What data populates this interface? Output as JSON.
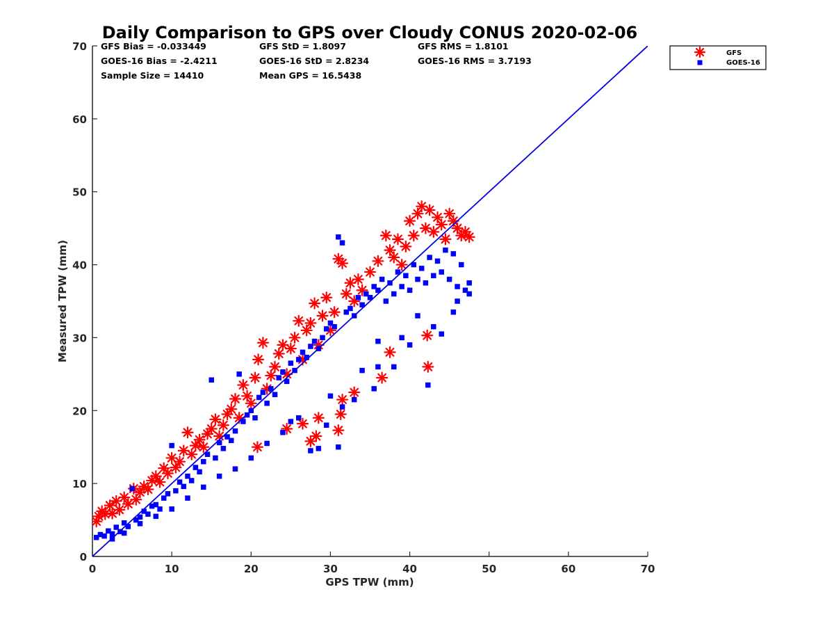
{
  "chart_data": {
    "type": "scatter",
    "title": "Daily Comparison to GPS over Cloudy CONUS 2020-02-06",
    "xlabel": "GPS TPW (mm)",
    "ylabel": "Measured TPW (mm)",
    "xlim": [
      0,
      70
    ],
    "ylim": [
      0,
      70
    ],
    "xticks": [
      0,
      10,
      20,
      30,
      40,
      50,
      60,
      70
    ],
    "yticks": [
      0,
      10,
      20,
      30,
      40,
      50,
      60,
      70
    ],
    "grid": false,
    "legend_position": "outside-top-right",
    "reference_line": {
      "name": "1:1 line",
      "x": [
        0,
        70
      ],
      "y": [
        0,
        70
      ],
      "color": "#0000e6"
    },
    "stats": [
      [
        "GFS Bias = -0.033449",
        "GFS StD = 1.8097",
        "GFS RMS = 1.8101"
      ],
      [
        "GOES-16 Bias = -2.4211",
        "GOES-16 StD = 2.8234",
        "GOES-16 RMS = 3.7193"
      ],
      [
        "Sample Size = 14410",
        "Mean GPS = 16.5438"
      ]
    ],
    "series": [
      {
        "name": "GFS",
        "marker": "asterisk",
        "color": "#ff0000",
        "points": [
          [
            0.5,
            4.8
          ],
          [
            0.8,
            5.5
          ],
          [
            1.2,
            6.2
          ],
          [
            1.6,
            5.8
          ],
          [
            2.2,
            7.0
          ],
          [
            2.5,
            5.9
          ],
          [
            3.0,
            7.6
          ],
          [
            3.4,
            6.4
          ],
          [
            4.0,
            8.1
          ],
          [
            4.5,
            7.2
          ],
          [
            5.2,
            9.3
          ],
          [
            5.5,
            7.8
          ],
          [
            6.0,
            8.8
          ],
          [
            6.5,
            9.6
          ],
          [
            7.0,
            9.2
          ],
          [
            7.5,
            10.4
          ],
          [
            8.0,
            11.0
          ],
          [
            8.5,
            10.2
          ],
          [
            9.0,
            12.1
          ],
          [
            9.5,
            11.4
          ],
          [
            10.0,
            13.5
          ],
          [
            10.5,
            12.2
          ],
          [
            11.0,
            13.0
          ],
          [
            11.5,
            14.5
          ],
          [
            12.0,
            17.0
          ],
          [
            12.5,
            14.0
          ],
          [
            13.0,
            15.2
          ],
          [
            13.5,
            16.0
          ],
          [
            14.0,
            15.0
          ],
          [
            14.5,
            16.8
          ],
          [
            15.0,
            17.5
          ],
          [
            15.5,
            18.8
          ],
          [
            16.0,
            16.5
          ],
          [
            16.5,
            18.0
          ],
          [
            17.0,
            19.5
          ],
          [
            17.5,
            20.2
          ],
          [
            18.0,
            21.6
          ],
          [
            18.5,
            19.0
          ],
          [
            19.0,
            23.5
          ],
          [
            19.5,
            22.0
          ],
          [
            20.0,
            21.0
          ],
          [
            20.5,
            24.5
          ],
          [
            20.9,
            27.0
          ],
          [
            21.5,
            29.3
          ],
          [
            22.0,
            23.0
          ],
          [
            22.5,
            24.8
          ],
          [
            23.0,
            26.0
          ],
          [
            23.5,
            27.8
          ],
          [
            24.0,
            29.0
          ],
          [
            24.5,
            25.0
          ],
          [
            25.0,
            28.5
          ],
          [
            25.5,
            30.0
          ],
          [
            26.0,
            32.3
          ],
          [
            26.5,
            27.0
          ],
          [
            27.0,
            31.0
          ],
          [
            27.5,
            32.0
          ],
          [
            28.0,
            34.7
          ],
          [
            28.5,
            29.0
          ],
          [
            29.0,
            33.0
          ],
          [
            29.5,
            35.5
          ],
          [
            30.0,
            31.0
          ],
          [
            30.5,
            33.5
          ],
          [
            31.0,
            40.8
          ],
          [
            31.5,
            40.2
          ],
          [
            32.0,
            36.0
          ],
          [
            32.5,
            37.5
          ],
          [
            33.0,
            35.0
          ],
          [
            33.5,
            38.0
          ],
          [
            34.0,
            36.5
          ],
          [
            35.0,
            39.0
          ],
          [
            36.0,
            40.5
          ],
          [
            37.0,
            44.0
          ],
          [
            37.5,
            42.0
          ],
          [
            38.0,
            41.0
          ],
          [
            38.5,
            43.5
          ],
          [
            39.0,
            40.0
          ],
          [
            39.5,
            42.5
          ],
          [
            40.0,
            46.0
          ],
          [
            40.5,
            44.0
          ],
          [
            41.0,
            47.0
          ],
          [
            41.5,
            48.0
          ],
          [
            42.0,
            45.0
          ],
          [
            42.5,
            47.5
          ],
          [
            43.0,
            44.5
          ],
          [
            43.5,
            46.5
          ],
          [
            44.0,
            45.5
          ],
          [
            44.5,
            43.5
          ],
          [
            45.0,
            47.0
          ],
          [
            45.5,
            46.0
          ],
          [
            46.0,
            45.0
          ],
          [
            46.5,
            44.0
          ],
          [
            47.0,
            44.5
          ],
          [
            47.5,
            43.8
          ],
          [
            42.3,
            26.0
          ],
          [
            42.2,
            30.3
          ],
          [
            31.5,
            21.5
          ],
          [
            31.3,
            19.5
          ],
          [
            31.0,
            17.3
          ],
          [
            27.5,
            15.8
          ],
          [
            28.2,
            16.5
          ],
          [
            28.5,
            19.0
          ],
          [
            26.5,
            18.2
          ],
          [
            37.5,
            28.0
          ],
          [
            36.5,
            24.5
          ],
          [
            33.0,
            22.5
          ],
          [
            20.8,
            15.0
          ],
          [
            24.5,
            17.5
          ]
        ]
      },
      {
        "name": "GOES-16",
        "marker": "square",
        "color": "#0000ff",
        "points": [
          [
            0.5,
            2.6
          ],
          [
            1.0,
            3.0
          ],
          [
            1.5,
            2.8
          ],
          [
            2.0,
            3.5
          ],
          [
            2.5,
            3.1
          ],
          [
            3.0,
            4.0
          ],
          [
            3.5,
            3.4
          ],
          [
            4.0,
            4.6
          ],
          [
            4.5,
            4.1
          ],
          [
            5.0,
            9.3
          ],
          [
            5.5,
            5.0
          ],
          [
            6.0,
            5.4
          ],
          [
            6.5,
            6.2
          ],
          [
            7.0,
            5.8
          ],
          [
            7.5,
            6.9
          ],
          [
            8.0,
            7.1
          ],
          [
            8.5,
            6.5
          ],
          [
            9.0,
            8.0
          ],
          [
            9.5,
            8.6
          ],
          [
            10.0,
            15.2
          ],
          [
            10.5,
            9.0
          ],
          [
            11.0,
            10.2
          ],
          [
            11.5,
            9.6
          ],
          [
            12.0,
            11.0
          ],
          [
            12.5,
            10.4
          ],
          [
            13.0,
            12.2
          ],
          [
            13.5,
            11.6
          ],
          [
            14.0,
            13.0
          ],
          [
            14.5,
            14.0
          ],
          [
            15.0,
            24.2
          ],
          [
            15.5,
            13.5
          ],
          [
            16.0,
            15.6
          ],
          [
            16.5,
            14.8
          ],
          [
            17.0,
            16.4
          ],
          [
            17.5,
            15.9
          ],
          [
            18.0,
            17.2
          ],
          [
            18.5,
            25.0
          ],
          [
            19.0,
            18.5
          ],
          [
            19.5,
            19.4
          ],
          [
            20.0,
            20.0
          ],
          [
            20.5,
            19.0
          ],
          [
            21.0,
            21.8
          ],
          [
            21.5,
            22.5
          ],
          [
            22.0,
            21.0
          ],
          [
            22.5,
            23.0
          ],
          [
            23.0,
            22.2
          ],
          [
            23.5,
            24.5
          ],
          [
            24.0,
            25.3
          ],
          [
            24.5,
            24.0
          ],
          [
            25.0,
            26.5
          ],
          [
            25.5,
            25.5
          ],
          [
            26.0,
            27.0
          ],
          [
            26.5,
            28.0
          ],
          [
            27.0,
            27.3
          ],
          [
            27.5,
            28.8
          ],
          [
            28.0,
            29.5
          ],
          [
            28.5,
            28.5
          ],
          [
            29.0,
            30.0
          ],
          [
            29.5,
            31.2
          ],
          [
            30.0,
            32.0
          ],
          [
            30.5,
            31.5
          ],
          [
            31.0,
            43.8
          ],
          [
            31.5,
            43.0
          ],
          [
            32.0,
            33.5
          ],
          [
            32.5,
            34.0
          ],
          [
            33.0,
            33.0
          ],
          [
            33.5,
            35.5
          ],
          [
            34.0,
            34.5
          ],
          [
            34.5,
            36.0
          ],
          [
            35.0,
            35.5
          ],
          [
            35.5,
            37.0
          ],
          [
            36.0,
            36.5
          ],
          [
            36.5,
            38.0
          ],
          [
            37.0,
            35.0
          ],
          [
            37.5,
            37.5
          ],
          [
            38.0,
            36.0
          ],
          [
            38.5,
            39.0
          ],
          [
            39.0,
            37.0
          ],
          [
            39.5,
            38.5
          ],
          [
            40.0,
            36.5
          ],
          [
            40.5,
            40.0
          ],
          [
            41.0,
            38.0
          ],
          [
            41.5,
            39.5
          ],
          [
            42.0,
            37.5
          ],
          [
            42.5,
            41.0
          ],
          [
            43.0,
            38.5
          ],
          [
            43.5,
            40.5
          ],
          [
            44.0,
            39.0
          ],
          [
            44.5,
            42.0
          ],
          [
            45.0,
            38.0
          ],
          [
            45.5,
            41.5
          ],
          [
            46.0,
            37.0
          ],
          [
            46.5,
            40.0
          ],
          [
            47.0,
            36.5
          ],
          [
            47.5,
            36.0
          ],
          [
            42.3,
            23.5
          ],
          [
            44.0,
            30.5
          ],
          [
            43.0,
            31.5
          ],
          [
            40.0,
            29.0
          ],
          [
            38.0,
            26.0
          ],
          [
            36.0,
            29.5
          ],
          [
            35.5,
            23.0
          ],
          [
            34.0,
            25.5
          ],
          [
            33.0,
            21.5
          ],
          [
            31.5,
            20.5
          ],
          [
            31.0,
            15.0
          ],
          [
            29.5,
            18.0
          ],
          [
            27.5,
            14.5
          ],
          [
            28.5,
            14.8
          ],
          [
            26.0,
            19.0
          ],
          [
            24.0,
            17.0
          ],
          [
            22.0,
            15.5
          ],
          [
            20.0,
            13.5
          ],
          [
            18.0,
            12.0
          ],
          [
            16.0,
            11.0
          ],
          [
            14.0,
            9.5
          ],
          [
            12.0,
            8.0
          ],
          [
            10.0,
            6.5
          ],
          [
            8.0,
            5.5
          ],
          [
            6.0,
            4.5
          ],
          [
            4.0,
            3.2
          ],
          [
            2.5,
            2.4
          ],
          [
            39.0,
            30.0
          ],
          [
            41.0,
            33.0
          ],
          [
            45.5,
            33.5
          ],
          [
            47.5,
            37.5
          ],
          [
            46.0,
            35.0
          ],
          [
            36.0,
            26.0
          ],
          [
            30.0,
            22.0
          ],
          [
            25.0,
            18.5
          ]
        ]
      }
    ]
  }
}
